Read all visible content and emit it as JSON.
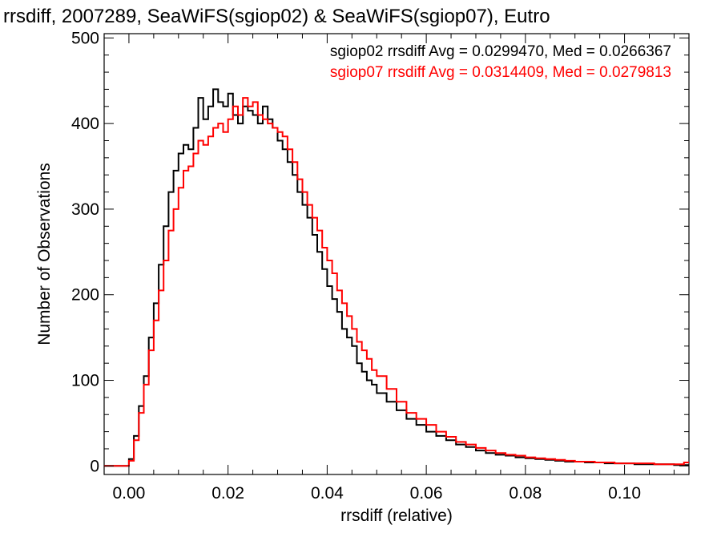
{
  "chart_data": {
    "type": "line",
    "style": "histogram-step",
    "title": "rrsdiff, 2007289, SeaWiFS(sgiop02) & SeaWiFS(sgiop07), Eutro",
    "xlabel": "rrsdiff (relative)",
    "ylabel": "Number of Observations",
    "xlim": [
      -0.005,
      0.113
    ],
    "ylim": [
      -10,
      505
    ],
    "xticks": [
      0.0,
      0.02,
      0.04,
      0.06,
      0.08,
      0.1
    ],
    "xtick_labels": [
      "0.00",
      "0.02",
      "0.04",
      "0.06",
      "0.08",
      "0.10"
    ],
    "yticks": [
      0,
      100,
      200,
      300,
      400,
      500
    ],
    "ytick_labels": [
      "0",
      "100",
      "200",
      "300",
      "400",
      "500"
    ],
    "grid": false,
    "legend_position": "top-right",
    "series": [
      {
        "name": "sgiop02",
        "color": "#000000",
        "legend_text": "sgiop02 rrsdiff Avg = 0.0299470, Med = 0.0266367",
        "x": [
          -0.005,
          -0.004,
          -0.003,
          -0.002,
          -0.001,
          0.0,
          0.001,
          0.002,
          0.003,
          0.004,
          0.005,
          0.006,
          0.007,
          0.008,
          0.009,
          0.01,
          0.011,
          0.012,
          0.013,
          0.014,
          0.015,
          0.016,
          0.017,
          0.018,
          0.019,
          0.02,
          0.021,
          0.022,
          0.023,
          0.024,
          0.025,
          0.026,
          0.027,
          0.028,
          0.029,
          0.03,
          0.031,
          0.032,
          0.033,
          0.034,
          0.035,
          0.036,
          0.037,
          0.038,
          0.039,
          0.04,
          0.041,
          0.042,
          0.043,
          0.044,
          0.045,
          0.046,
          0.047,
          0.048,
          0.049,
          0.05,
          0.052,
          0.054,
          0.056,
          0.058,
          0.06,
          0.062,
          0.064,
          0.066,
          0.068,
          0.07,
          0.072,
          0.074,
          0.076,
          0.078,
          0.08,
          0.082,
          0.084,
          0.086,
          0.088,
          0.09,
          0.092,
          0.094,
          0.096,
          0.098,
          0.1,
          0.102,
          0.104,
          0.106,
          0.108,
          0.11,
          0.112
        ],
        "y": [
          0,
          0,
          0,
          0,
          0,
          8,
          35,
          70,
          105,
          150,
          190,
          235,
          280,
          320,
          345,
          365,
          375,
          370,
          395,
          430,
          405,
          420,
          440,
          425,
          420,
          435,
          410,
          400,
          420,
          415,
          410,
          400,
          420,
          405,
          395,
          380,
          370,
          355,
          340,
          320,
          305,
          290,
          270,
          250,
          230,
          210,
          195,
          180,
          160,
          150,
          140,
          120,
          110,
          100,
          95,
          85,
          75,
          65,
          55,
          48,
          40,
          35,
          30,
          25,
          22,
          18,
          15,
          13,
          12,
          10,
          9,
          8,
          7,
          6,
          5,
          5,
          4,
          4,
          3,
          3,
          3,
          2,
          2,
          2,
          2,
          1,
          1
        ]
      },
      {
        "name": "sgiop07",
        "color": "#ff0000",
        "legend_text": "sgiop07 rrsdiff Avg = 0.0314409, Med = 0.0279813",
        "x": [
          -0.005,
          -0.004,
          -0.003,
          -0.002,
          -0.001,
          0.0,
          0.001,
          0.002,
          0.003,
          0.004,
          0.005,
          0.006,
          0.007,
          0.008,
          0.009,
          0.01,
          0.011,
          0.012,
          0.013,
          0.014,
          0.015,
          0.016,
          0.017,
          0.018,
          0.019,
          0.02,
          0.021,
          0.022,
          0.023,
          0.024,
          0.025,
          0.026,
          0.027,
          0.028,
          0.029,
          0.03,
          0.031,
          0.032,
          0.033,
          0.034,
          0.035,
          0.036,
          0.037,
          0.038,
          0.039,
          0.04,
          0.041,
          0.042,
          0.043,
          0.044,
          0.045,
          0.046,
          0.047,
          0.048,
          0.049,
          0.05,
          0.052,
          0.054,
          0.056,
          0.058,
          0.06,
          0.062,
          0.064,
          0.066,
          0.068,
          0.07,
          0.072,
          0.074,
          0.076,
          0.078,
          0.08,
          0.082,
          0.084,
          0.086,
          0.088,
          0.09,
          0.092,
          0.094,
          0.096,
          0.098,
          0.1,
          0.102,
          0.104,
          0.106,
          0.108,
          0.11,
          0.112
        ],
        "y": [
          0,
          0,
          0,
          0,
          0,
          6,
          30,
          62,
          95,
          135,
          170,
          205,
          240,
          275,
          300,
          325,
          345,
          350,
          365,
          380,
          375,
          385,
          395,
          400,
          390,
          405,
          420,
          410,
          430,
          420,
          425,
          410,
          405,
          400,
          395,
          390,
          385,
          370,
          355,
          335,
          320,
          305,
          290,
          275,
          255,
          240,
          225,
          205,
          190,
          175,
          160,
          145,
          135,
          125,
          112,
          105,
          90,
          75,
          62,
          55,
          48,
          40,
          34,
          28,
          25,
          21,
          18,
          15,
          13,
          12,
          10,
          9,
          8,
          7,
          6,
          5,
          5,
          4,
          4,
          3,
          3,
          3,
          3,
          2,
          2,
          2,
          4
        ]
      }
    ]
  }
}
